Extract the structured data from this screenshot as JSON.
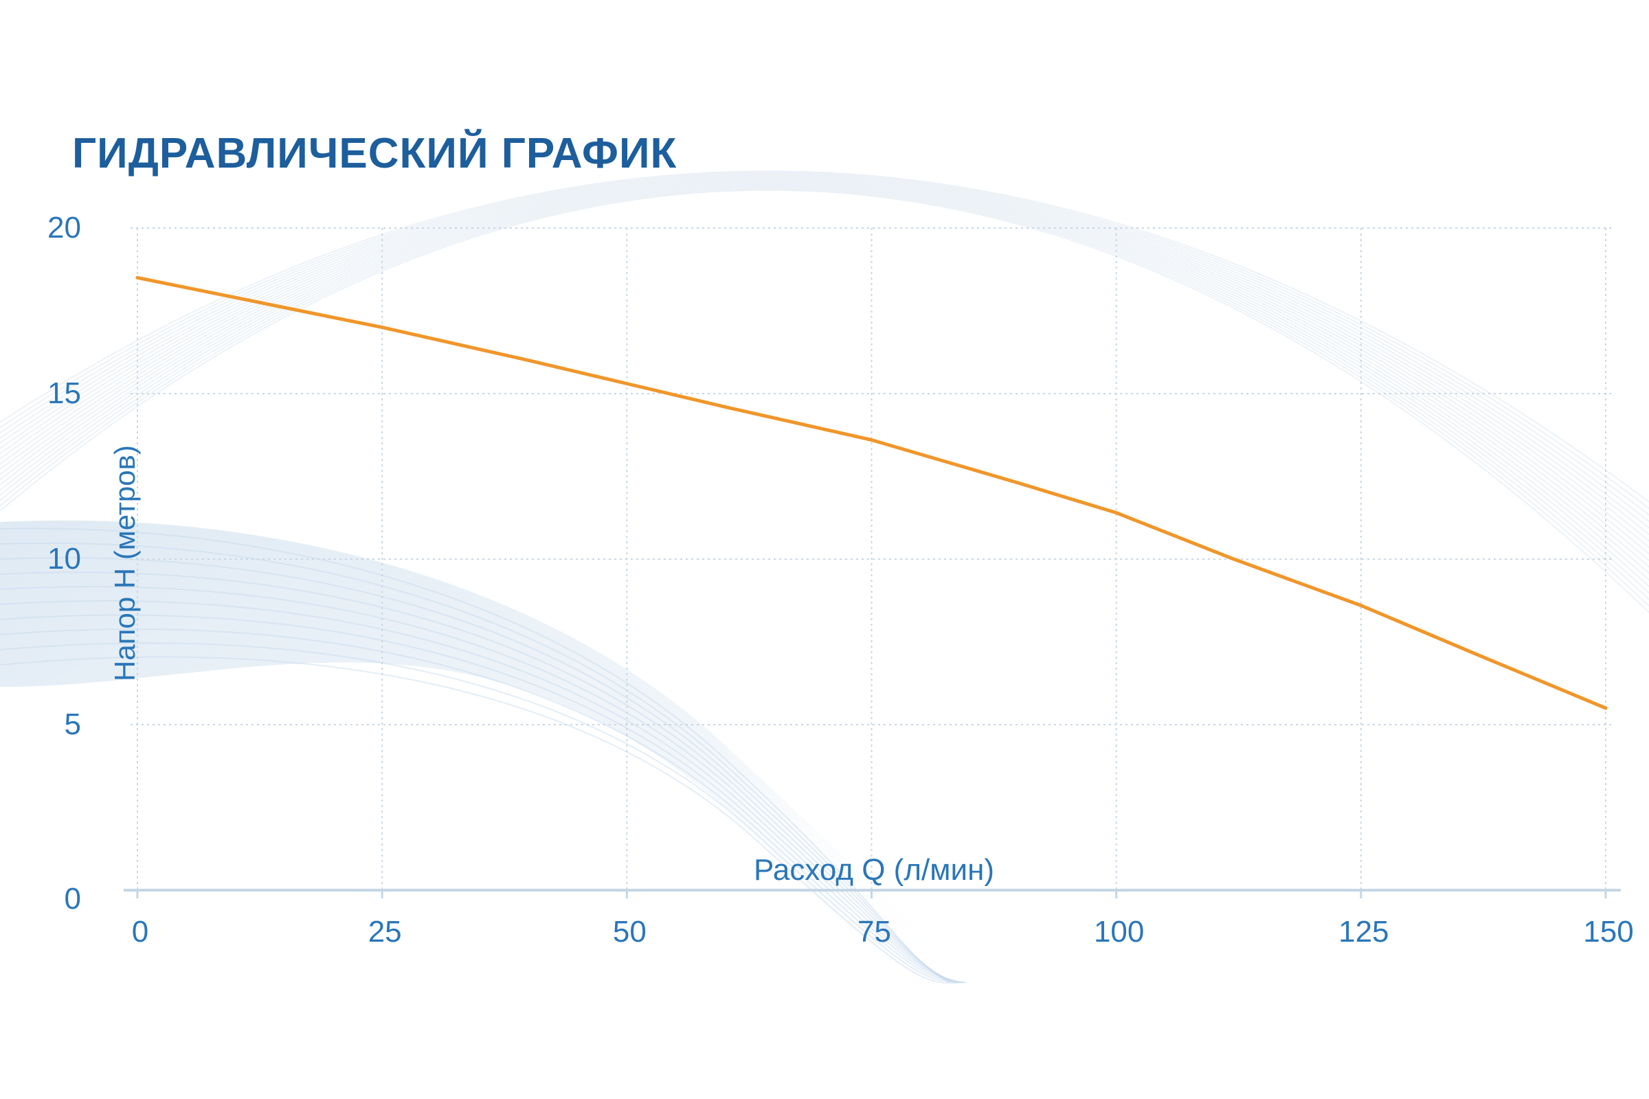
{
  "chart_data": {
    "type": "line",
    "title": "ГИДРАВЛИЧЕСКИЙ ГРАФИК",
    "xlabel": "Расход Q (л/мин)",
    "ylabel": "Напор H (метров)",
    "xlim": [
      0,
      150
    ],
    "ylim": [
      0,
      20
    ],
    "x_ticks": [
      "0",
      "25",
      "50",
      "75",
      "100",
      "125",
      "150"
    ],
    "y_ticks": [
      "0",
      "5",
      "10",
      "15",
      "20"
    ],
    "grid": true,
    "series": [
      {
        "x": [
          0,
          10,
          25,
          40,
          50,
          60,
          75,
          90,
          100,
          112,
          125,
          137,
          150
        ],
        "y": [
          18.5,
          17.9,
          17.0,
          16.0,
          15.3,
          14.6,
          13.6,
          12.3,
          11.4,
          10.0,
          8.6,
          7.1,
          5.5
        ]
      }
    ]
  },
  "colors": {
    "title": "#1d5e9c",
    "axis_text": "#2a76b8",
    "line": "#f0962a",
    "grid": "#c9d6e3",
    "axis": "#c5d6e6",
    "swoosh": "#c4d8ea"
  }
}
